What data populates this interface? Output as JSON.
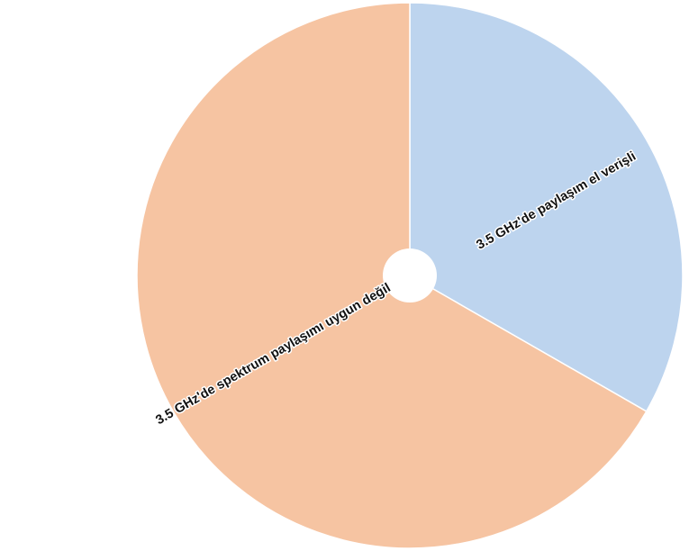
{
  "chart_data": {
    "type": "pie",
    "title": "",
    "slices": [
      {
        "label": "3.5 GHz'de paylaşım el verişli",
        "value": 33.3,
        "color": "#bdd4ee"
      },
      {
        "label": "3.5 GHz'de spektrum paylaşımı uygun değil",
        "value": 66.7,
        "color": "#f6c4a2"
      }
    ],
    "legend": "none"
  }
}
